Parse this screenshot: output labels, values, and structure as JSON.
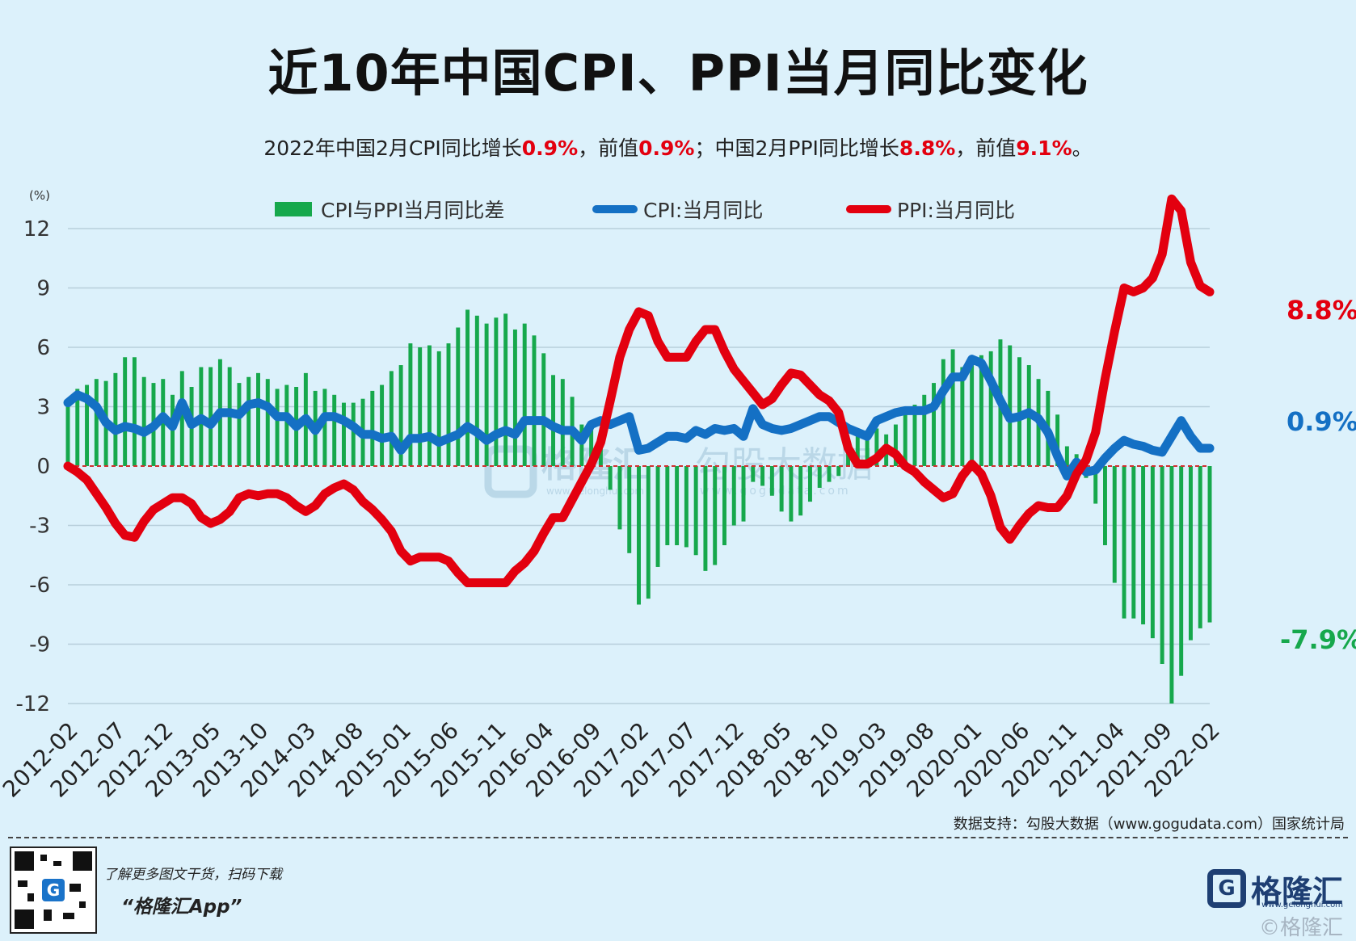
{
  "title": "近10年中国CPI、PPI当月同比变化",
  "subtitle": {
    "p1": "2022年中国2月CPI同比增长",
    "v1": "0.9%",
    "p2": "，前值",
    "v2": "0.9%",
    "p3": "；中国2月PPI同比增长",
    "v3": "8.8%",
    "p4": "，前值",
    "v4": "9.1%",
    "p5": "。"
  },
  "chart_data": {
    "type": "line+bar",
    "y_unit": "(%)",
    "ylim": [
      -12,
      13.5
    ],
    "yticks": [
      12,
      9,
      6,
      3,
      0,
      -3,
      -6,
      -9,
      -12
    ],
    "x_tick_labels": [
      "2012-02",
      "2012-07",
      "2012-12",
      "2013-05",
      "2013-10",
      "2014-03",
      "2014-08",
      "2015-01",
      "2015-06",
      "2015-11",
      "2016-04",
      "2016-09",
      "2017-02",
      "2017-07",
      "2017-12",
      "2018-05",
      "2018-10",
      "2019-03",
      "2019-08",
      "2020-01",
      "2020-06",
      "2020-11",
      "2021-04",
      "2021-09",
      "2022-02"
    ],
    "start_month": "2012-02",
    "legend_placement": "top",
    "grid": true,
    "series": [
      {
        "name": "CPI与PPI当月同比差",
        "kind": "bar",
        "color": "#16a84c",
        "values": []
      },
      {
        "name": "CPI:当月同比",
        "kind": "line",
        "color": "#1470c4",
        "values": [
          3.2,
          3.6,
          3.4,
          3.0,
          2.2,
          1.8,
          2.0,
          1.9,
          1.7,
          2.0,
          2.5,
          2.0,
          3.2,
          2.1,
          2.4,
          2.1,
          2.7,
          2.7,
          2.6,
          3.1,
          3.2,
          3.0,
          2.5,
          2.5,
          2.0,
          2.4,
          1.8,
          2.5,
          2.5,
          2.3,
          2.0,
          1.6,
          1.6,
          1.4,
          1.5,
          0.8,
          1.4,
          1.4,
          1.5,
          1.2,
          1.4,
          1.6,
          2.0,
          1.7,
          1.3,
          1.6,
          1.8,
          1.6,
          2.3,
          2.3,
          2.3,
          2.0,
          1.8,
          1.8,
          1.3,
          2.1,
          2.3,
          2.1,
          2.3,
          2.5,
          0.8,
          0.9,
          1.2,
          1.5,
          1.5,
          1.4,
          1.8,
          1.6,
          1.9,
          1.8,
          1.9,
          1.5,
          2.9,
          2.1,
          1.9,
          1.8,
          1.9,
          2.1,
          2.3,
          2.5,
          2.5,
          2.2,
          1.9,
          1.7,
          1.5,
          2.3,
          2.5,
          2.7,
          2.8,
          2.8,
          2.8,
          3.0,
          3.8,
          4.5,
          4.5,
          5.4,
          5.2,
          4.3,
          3.3,
          2.4,
          2.5,
          2.7,
          2.4,
          1.7,
          0.5,
          -0.5,
          0.2,
          -0.3,
          -0.2,
          0.4,
          0.9,
          1.3,
          1.1,
          1.0,
          0.8,
          0.7,
          1.5,
          2.3,
          1.5,
          0.9,
          0.9
        ]
      },
      {
        "name": "PPI:当月同比",
        "kind": "line",
        "color": "#e3000f",
        "values": [
          0.0,
          -0.3,
          -0.7,
          -1.4,
          -2.1,
          -2.9,
          -3.5,
          -3.6,
          -2.8,
          -2.2,
          -1.9,
          -1.6,
          -1.6,
          -1.9,
          -2.6,
          -2.9,
          -2.7,
          -2.3,
          -1.6,
          -1.4,
          -1.5,
          -1.4,
          -1.4,
          -1.6,
          -2.0,
          -2.3,
          -2.0,
          -1.4,
          -1.1,
          -0.9,
          -1.2,
          -1.8,
          -2.2,
          -2.7,
          -3.3,
          -4.3,
          -4.8,
          -4.6,
          -4.6,
          -4.6,
          -4.8,
          -5.4,
          -5.9,
          -5.9,
          -5.9,
          -5.9,
          -5.9,
          -5.3,
          -4.9,
          -4.3,
          -3.4,
          -2.6,
          -2.6,
          -1.7,
          -0.8,
          0.1,
          1.2,
          3.3,
          5.5,
          6.9,
          7.8,
          7.6,
          6.3,
          5.5,
          5.5,
          5.5,
          6.3,
          6.9,
          6.9,
          5.8,
          4.9,
          4.3,
          3.7,
          3.1,
          3.4,
          4.1,
          4.7,
          4.6,
          4.1,
          3.6,
          3.3,
          2.7,
          0.9,
          0.1,
          0.1,
          0.4,
          0.9,
          0.6,
          0.0,
          -0.3,
          -0.8,
          -1.2,
          -1.6,
          -1.4,
          -0.5,
          0.1,
          -0.4,
          -1.5,
          -3.1,
          -3.7,
          -3.0,
          -2.4,
          -2.0,
          -2.1,
          -2.1,
          -1.5,
          -0.4,
          0.3,
          1.7,
          4.4,
          6.8,
          9.0,
          8.8,
          9.0,
          9.5,
          10.7,
          13.5,
          12.9,
          10.3,
          9.1,
          8.8
        ]
      }
    ],
    "end_labels": {
      "ppi": "8.8%",
      "cpi": "0.9%",
      "diff": "-7.9%"
    }
  },
  "source": "数据支持：勾股大数据（www.gogudata.com）国家统计局",
  "footer": {
    "line1": "了解更多图文干货，扫码下载",
    "line2": "“格隆汇App”"
  },
  "logo": {
    "mark": "G",
    "text": "格隆汇",
    "url": "www.gelonghui.com"
  },
  "watermark": {
    "left": "格隆汇",
    "left_url": "www.gelonghui.com",
    "right": "勾股大数据",
    "right_url": "www.gogudata.com",
    "bottom": "©格隆汇"
  },
  "colors": {
    "background": "#dcf1fb",
    "cpi": "#1470c4",
    "ppi": "#e3000f",
    "diff": "#16a84c",
    "highlight": "#e3000f",
    "zero_line": "#d23030"
  }
}
